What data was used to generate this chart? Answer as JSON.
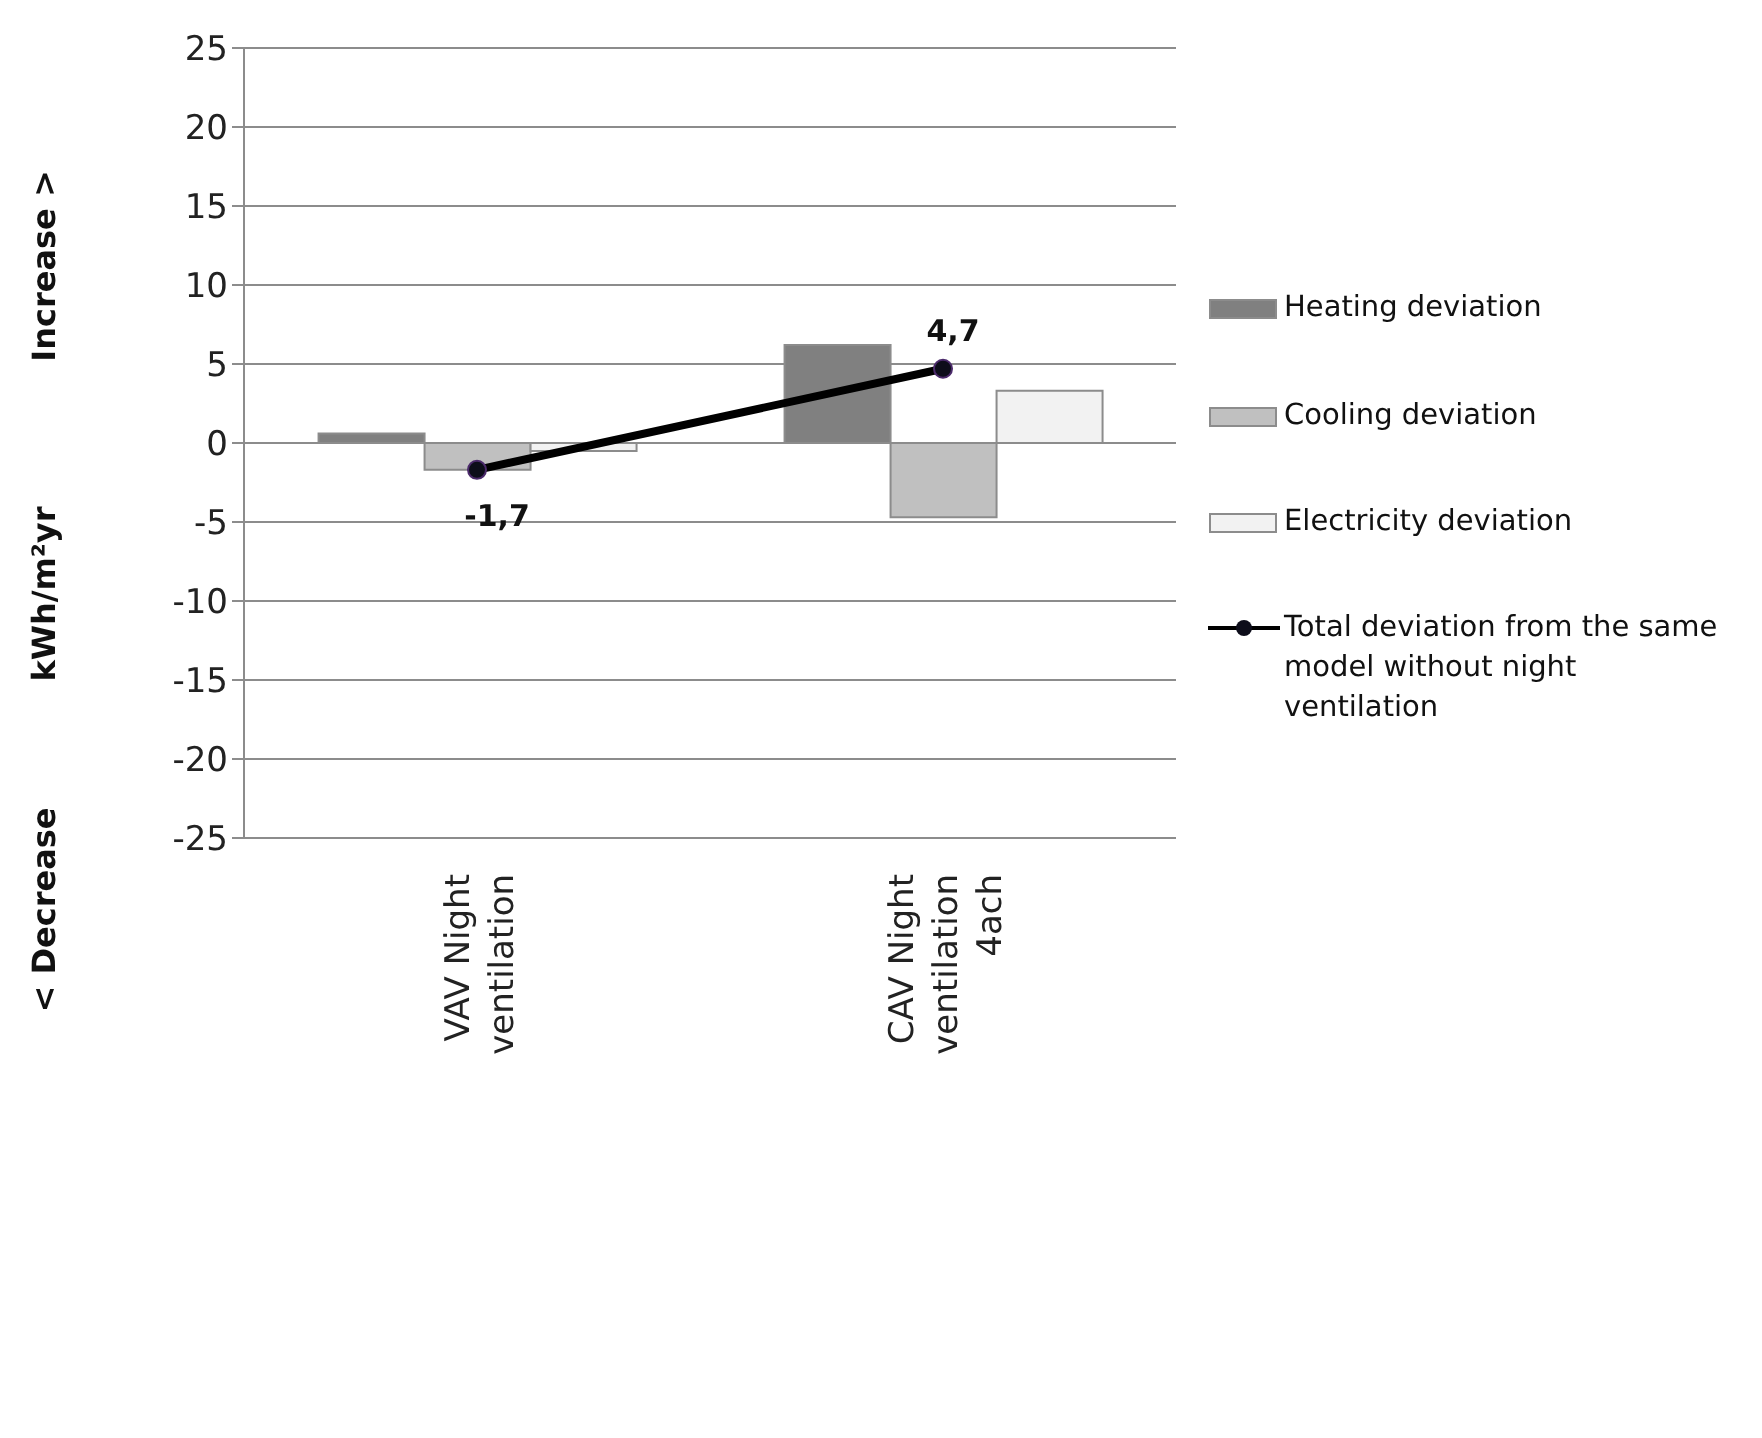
{
  "chart_data": {
    "type": "bar",
    "categories": [
      "VAV Night ventilation",
      "CAV Night ventilation 4ach"
    ],
    "ylabel": "kWh/m²yr",
    "annotations": [
      "Increase >",
      "< Decrease"
    ],
    "series": [
      {
        "name": "Heating deviation",
        "color": "#808080",
        "values": [
          0.6,
          6.2
        ]
      },
      {
        "name": "Cooling deviation",
        "color": "#c0c0c0",
        "values": [
          -1.7,
          -4.7
        ]
      },
      {
        "name": "Electricity deviation",
        "color": "#f2f2f2",
        "values": [
          -0.5,
          3.3
        ]
      },
      {
        "name": "Total deviation from the same model without night ventilation",
        "type": "line",
        "color": "#000000",
        "values": [
          -1.7,
          4.7
        ],
        "value_labels": [
          "-1,7",
          "4,7"
        ]
      }
    ],
    "ylim": [
      -25,
      25
    ],
    "yticks": [
      -25,
      -20,
      -15,
      -10,
      -5,
      0,
      5,
      10,
      15,
      20,
      25
    ],
    "grid": "y",
    "legend": "right",
    "marker": "circle",
    "line_style": "solid"
  }
}
